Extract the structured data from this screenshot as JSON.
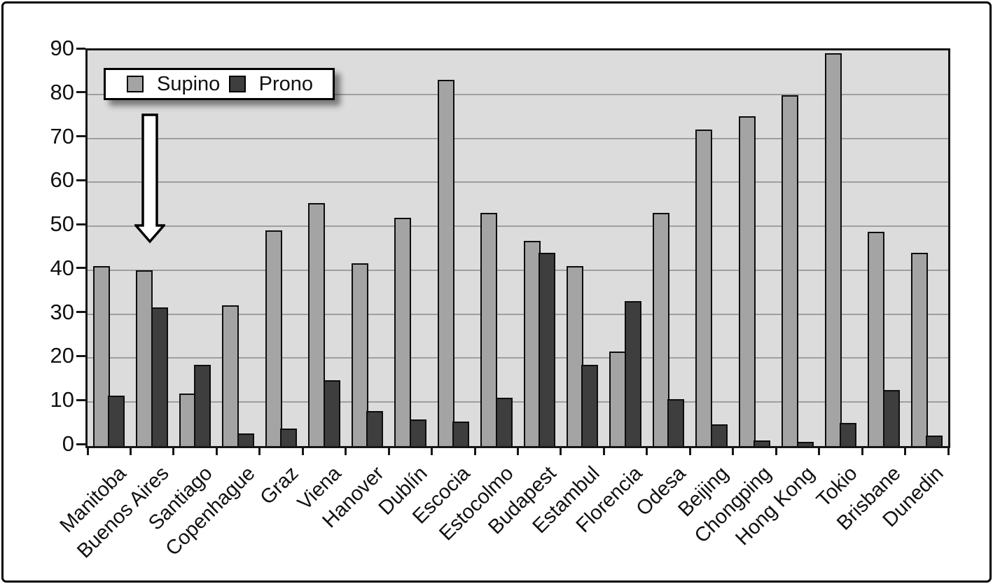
{
  "chart_data": {
    "type": "bar",
    "title": "",
    "xlabel": "",
    "ylabel": "",
    "categories": [
      "Manitoba",
      "Buenos Aires",
      "Santiago",
      "Copenhague",
      "Graz",
      "Viena",
      "Hanover",
      "Dublín",
      "Escocia",
      "Estocolmo",
      "Budapest",
      "Estambul",
      "Florencia",
      "Odesa",
      "Beijing",
      "Chongping",
      "Hong Kong",
      "Tokio",
      "Brisbane",
      "Dunedin"
    ],
    "series": [
      {
        "name": "Supino",
        "color": "#a4a4a4",
        "values": [
          41,
          40,
          12,
          32,
          49,
          55.3,
          41.5,
          52,
          83.3,
          53,
          46.7,
          41,
          21.5,
          53,
          72,
          75,
          79.8,
          89.3,
          48.7,
          44
        ]
      },
      {
        "name": "Prono",
        "color": "#3e3e3e",
        "values": [
          11.5,
          31.5,
          18.5,
          2.8,
          4,
          15,
          8,
          6,
          5.5,
          11,
          44,
          18.5,
          33,
          10.7,
          5,
          1.2,
          1,
          5.3,
          12.7,
          2.4
        ]
      }
    ],
    "ylim": [
      0,
      90
    ],
    "ytick_step": 10,
    "ytick_labels": [
      "90",
      "80",
      "70",
      "60",
      "50",
      "40",
      "30",
      "20",
      "10",
      "0"
    ],
    "grid": true,
    "gridline_color": "#9f9f9f",
    "plot_background": "#dcdcdc",
    "axis_color": "#161616",
    "legend_position": "top-left",
    "annotation": {
      "shape": "down-arrow",
      "fill": "#ffffff",
      "outline": "#000000",
      "points_at": "Buenos Aires"
    }
  }
}
